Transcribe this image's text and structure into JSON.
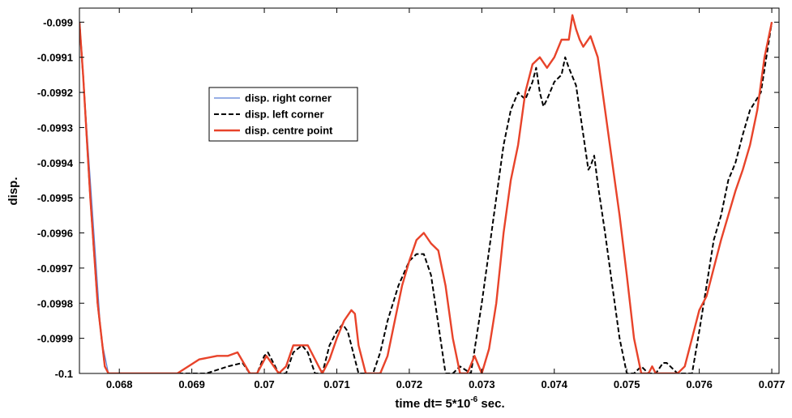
{
  "chart_data": {
    "type": "line",
    "title": "",
    "xlabel": "time dt= 5*10",
    "xlabel_sup": "-6",
    "xlabel_suffix": " sec.",
    "ylabel": "disp.",
    "xlim": [
      0.06745,
      0.0771
    ],
    "ylim": [
      -0.1,
      -0.09896
    ],
    "x_ticks": [
      0.068,
      0.069,
      0.07,
      0.071,
      0.072,
      0.073,
      0.074,
      0.075,
      0.076,
      0.077
    ],
    "x_tick_labels": [
      "0.068",
      "0.069",
      "0.07",
      "0.071",
      "0.072",
      "0.073",
      "0.074",
      "0.075",
      "0.076",
      "0.077"
    ],
    "y_ticks": [
      -0.099,
      -0.0991,
      -0.0992,
      -0.0993,
      -0.0994,
      -0.0995,
      -0.0996,
      -0.0997,
      -0.0998,
      -0.0999,
      -0.1
    ],
    "y_tick_labels": [
      "-0.099",
      "-0.0991",
      "-0.0992",
      "-0.0993",
      "-0.0994",
      "-0.0995",
      "-0.0996",
      "-0.0997",
      "-0.0998",
      "-0.0999",
      "-0.1"
    ],
    "grid": false,
    "legend_position": "upper-left-inside",
    "series": [
      {
        "name": "disp. right corner",
        "color": "#5b7fd6",
        "style": "solid",
        "x": [
          0.06745,
          0.06775,
          0.06785
        ],
        "y": [
          -0.099,
          -0.0999,
          -0.1
        ]
      },
      {
        "name": "disp. left corner",
        "color": "#000000",
        "style": "dashed",
        "x": [
          0.06745,
          0.0675,
          0.0676,
          0.0677,
          0.0678,
          0.06785,
          0.0679,
          0.0685,
          0.0688,
          0.0692,
          0.0695,
          0.0697,
          0.0698,
          0.0699,
          0.07,
          0.07005,
          0.0701,
          0.0702,
          0.0703,
          0.0704,
          0.07052,
          0.0706,
          0.0707,
          0.0708,
          0.0709,
          0.071,
          0.07108,
          0.07115,
          0.0712,
          0.0713,
          0.0714,
          0.0715,
          0.0716,
          0.0717,
          0.07185,
          0.072,
          0.0721,
          0.0722,
          0.0723,
          0.0724,
          0.0725,
          0.0726,
          0.0727,
          0.07285,
          0.073,
          0.0731,
          0.0732,
          0.0733,
          0.0734,
          0.0735,
          0.0736,
          0.0737,
          0.07375,
          0.0738,
          0.07385,
          0.0739,
          0.074,
          0.0741,
          0.07415,
          0.0742,
          0.0743,
          0.0744,
          0.07447,
          0.0745,
          0.07455,
          0.0746,
          0.0747,
          0.0748,
          0.0749,
          0.075,
          0.07505,
          0.0751,
          0.0752,
          0.0753,
          0.0754,
          0.0755,
          0.07555,
          0.0756,
          0.0757,
          0.0758,
          0.0759,
          0.076,
          0.0761,
          0.0762,
          0.0763,
          0.0764,
          0.0765,
          0.0766,
          0.0767,
          0.07685,
          0.077
        ],
        "y": [
          -0.099,
          -0.09915,
          -0.0995,
          -0.0998,
          -0.09998,
          -0.1,
          -0.1,
          -0.1,
          -0.1,
          -0.1,
          -0.09998,
          -0.09997,
          -0.1,
          -0.1,
          -0.09995,
          -0.09994,
          -0.09996,
          -0.1,
          -0.1,
          -0.09994,
          -0.09992,
          -0.09994,
          -0.1,
          -0.1,
          -0.09992,
          -0.09988,
          -0.09986,
          -0.09988,
          -0.09992,
          -0.1,
          -0.1,
          -0.1,
          -0.09994,
          -0.09985,
          -0.09975,
          -0.09968,
          -0.09966,
          -0.09966,
          -0.09972,
          -0.09986,
          -0.1,
          -0.1,
          -0.09998,
          -0.1,
          -0.0998,
          -0.09965,
          -0.0995,
          -0.09935,
          -0.09925,
          -0.0992,
          -0.09922,
          -0.09917,
          -0.09913,
          -0.0992,
          -0.09924,
          -0.09922,
          -0.09917,
          -0.09915,
          -0.0991,
          -0.09913,
          -0.09918,
          -0.09932,
          -0.09942,
          -0.09941,
          -0.09938,
          -0.09946,
          -0.0996,
          -0.09975,
          -0.0999,
          -0.1,
          -0.1,
          -0.1,
          -0.09998,
          -0.1,
          -0.1,
          -0.09997,
          -0.09997,
          -0.09998,
          -0.1,
          -0.1,
          -0.1,
          -0.09988,
          -0.09975,
          -0.09962,
          -0.09955,
          -0.09945,
          -0.0994,
          -0.09932,
          -0.09925,
          -0.0992,
          -0.099
        ]
      },
      {
        "name": "disp. centre point",
        "color": "#e8432a",
        "style": "solid",
        "x": [
          0.06745,
          0.0675,
          0.0676,
          0.0677,
          0.0678,
          0.06785,
          0.0679,
          0.0685,
          0.0688,
          0.0691,
          0.06935,
          0.0695,
          0.06963,
          0.0698,
          0.0699,
          0.07003,
          0.0702,
          0.0703,
          0.0704,
          0.0705,
          0.0706,
          0.07065,
          0.0708,
          0.0709,
          0.071,
          0.0711,
          0.0712,
          0.07125,
          0.0713,
          0.0714,
          0.0715,
          0.0716,
          0.0717,
          0.0718,
          0.0719,
          0.072,
          0.0721,
          0.0722,
          0.0723,
          0.0724,
          0.0725,
          0.0726,
          0.0727,
          0.0728,
          0.0729,
          0.073,
          0.0731,
          0.0732,
          0.0733,
          0.0734,
          0.0735,
          0.0736,
          0.0737,
          0.0738,
          0.0739,
          0.074,
          0.0741,
          0.0742,
          0.07425,
          0.0743,
          0.07435,
          0.0744,
          0.0745,
          0.0746,
          0.0747,
          0.0748,
          0.0749,
          0.075,
          0.0751,
          0.0752,
          0.0753,
          0.07535,
          0.0754,
          0.0755,
          0.0756,
          0.0757,
          0.0758,
          0.0759,
          0.076,
          0.0761,
          0.0762,
          0.0763,
          0.0764,
          0.0765,
          0.0766,
          0.0767,
          0.0768,
          0.0769,
          0.077
        ],
        "y": [
          -0.099,
          -0.09915,
          -0.0995,
          -0.0998,
          -0.09998,
          -0.1,
          -0.1,
          -0.1,
          -0.1,
          -0.09996,
          -0.09995,
          -0.09995,
          -0.09994,
          -0.1,
          -0.1,
          -0.09995,
          -0.1,
          -0.09998,
          -0.09992,
          -0.09992,
          -0.09992,
          -0.09994,
          -0.1,
          -0.09996,
          -0.0999,
          -0.09985,
          -0.09982,
          -0.09983,
          -0.09992,
          -0.1,
          -0.1,
          -0.1,
          -0.09995,
          -0.09985,
          -0.09975,
          -0.09968,
          -0.09962,
          -0.0996,
          -0.09963,
          -0.09965,
          -0.09975,
          -0.0999,
          -0.1,
          -0.1,
          -0.09995,
          -0.1,
          -0.09993,
          -0.0998,
          -0.0996,
          -0.09945,
          -0.09935,
          -0.0992,
          -0.09912,
          -0.0991,
          -0.09913,
          -0.0991,
          -0.09905,
          -0.09905,
          -0.09898,
          -0.09902,
          -0.09905,
          -0.09907,
          -0.09904,
          -0.0991,
          -0.09925,
          -0.0994,
          -0.09955,
          -0.09972,
          -0.0999,
          -0.1,
          -0.1,
          -0.09998,
          -0.1,
          -0.1,
          -0.1,
          -0.1,
          -0.09998,
          -0.0999,
          -0.09982,
          -0.09978,
          -0.0997,
          -0.09962,
          -0.09955,
          -0.09948,
          -0.09942,
          -0.09935,
          -0.09925,
          -0.0991,
          -0.099
        ]
      }
    ]
  }
}
